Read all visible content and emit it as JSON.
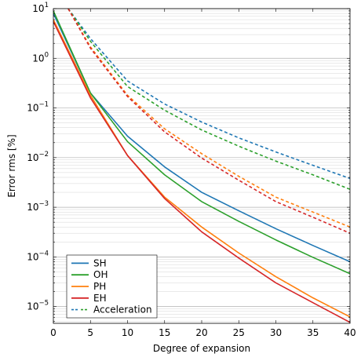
{
  "chart_data": {
    "type": "line",
    "xlabel": "Degree of expansion",
    "ylabel": "Error rms [%]",
    "xlim": [
      0,
      40
    ],
    "ylim": [
      4.6e-06,
      10
    ],
    "yscale": "log",
    "x_ticks": [
      0,
      5,
      10,
      15,
      20,
      25,
      30,
      35,
      40
    ],
    "y_ticks": [
      {
        "base": "10",
        "exp": "1",
        "value": 10
      },
      {
        "base": "10",
        "exp": "0",
        "value": 1
      },
      {
        "base": "10",
        "exp": "−1",
        "value": 0.1
      },
      {
        "base": "10",
        "exp": "−2",
        "value": 0.01
      },
      {
        "base": "10",
        "exp": "−3",
        "value": 0.001
      },
      {
        "base": "10",
        "exp": "−4",
        "value": 0.0001
      },
      {
        "base": "10",
        "exp": "−5",
        "value": 1e-05
      }
    ],
    "grid": "y-major-and-minor",
    "legend_position": "bottom-left",
    "legend": [
      {
        "label": "SH",
        "color": "#1f77b4",
        "style": "solid"
      },
      {
        "label": "OH",
        "color": "#2ca02c",
        "style": "solid"
      },
      {
        "label": "PH",
        "color": "#ff7f0e",
        "style": "solid"
      },
      {
        "label": "EH",
        "color": "#d62728",
        "style": "solid"
      },
      {
        "label": "Acceleration",
        "color": "#1f77b4",
        "color2": "#2ca02c",
        "style": "dashed"
      }
    ],
    "series": [
      {
        "key": "sh",
        "color": "#1f77b4",
        "style": "solid",
        "x": [
          0,
          5,
          10,
          15,
          20,
          25,
          30,
          35,
          40
        ],
        "y": [
          8,
          0.2,
          0.027,
          0.0065,
          0.002,
          0.00085,
          0.00037,
          0.00017,
          8e-05
        ]
      },
      {
        "key": "oh",
        "color": "#2ca02c",
        "style": "solid",
        "x": [
          0,
          5,
          10,
          15,
          20,
          25,
          30,
          35,
          40
        ],
        "y": [
          9,
          0.2,
          0.021,
          0.0045,
          0.0013,
          0.00052,
          0.00022,
          9.8e-05,
          4.6e-05
        ]
      },
      {
        "key": "ph",
        "color": "#ff7f0e",
        "style": "solid",
        "x": [
          0,
          5,
          10,
          15,
          20,
          25,
          30,
          35,
          40
        ],
        "y": [
          6,
          0.18,
          0.011,
          0.0016,
          0.0004,
          0.00012,
          4e-05,
          1.5e-05,
          6.2e-06
        ]
      },
      {
        "key": "eh",
        "color": "#d62728",
        "style": "solid",
        "x": [
          0,
          5,
          10,
          15,
          20,
          25,
          30,
          35,
          40
        ],
        "y": [
          5.5,
          0.16,
          0.011,
          0.0015,
          0.00032,
          9.5e-05,
          3e-05,
          1.2e-05,
          4.8e-06
        ]
      },
      {
        "key": "sh-acc",
        "color": "#1f77b4",
        "style": "dashed",
        "x": [
          2,
          5,
          10,
          15,
          20,
          25,
          30,
          35,
          40
        ],
        "y": [
          10,
          2.5,
          0.35,
          0.12,
          0.052,
          0.025,
          0.013,
          0.007,
          0.0038
        ]
      },
      {
        "key": "oh-acc",
        "color": "#2ca02c",
        "style": "dashed",
        "x": [
          2,
          5,
          10,
          15,
          20,
          25,
          30,
          35,
          40
        ],
        "y": [
          10,
          2.2,
          0.27,
          0.09,
          0.036,
          0.017,
          0.0085,
          0.0045,
          0.0023
        ]
      },
      {
        "key": "ph-acc",
        "color": "#ff7f0e",
        "style": "dashed",
        "x": [
          2,
          5,
          10,
          15,
          20,
          25,
          30,
          35,
          40
        ],
        "y": [
          10,
          1.7,
          0.18,
          0.038,
          0.012,
          0.0042,
          0.0016,
          0.0008,
          0.0004
        ]
      },
      {
        "key": "eh-acc",
        "color": "#d62728",
        "style": "dashed",
        "x": [
          2,
          5,
          10,
          15,
          20,
          25,
          30,
          35,
          40
        ],
        "y": [
          10,
          1.6,
          0.17,
          0.033,
          0.0098,
          0.0035,
          0.0013,
          0.00063,
          0.0003
        ]
      }
    ]
  }
}
